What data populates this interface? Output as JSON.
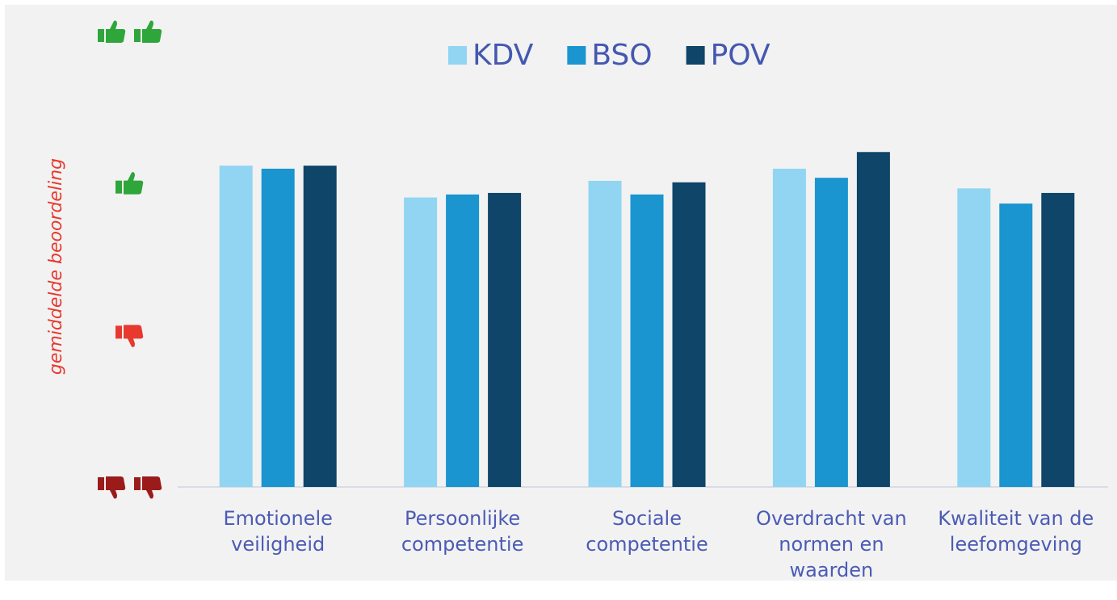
{
  "chart_data": {
    "type": "bar",
    "y_label": "gemiddelde beoordeling",
    "categories": [
      "Emotionele veiligheid",
      "Persoonlijke competentie",
      "Sociale competentie",
      "Overdracht van normen en waarden",
      "Kwaliteit van de leefomgeving"
    ],
    "series": [
      {
        "name": "KDV",
        "color": "#91d5f3",
        "values": [
          3.12,
          2.91,
          3.02,
          3.1,
          2.97
        ]
      },
      {
        "name": "BSO",
        "color": "#1a95d0",
        "values": [
          3.1,
          2.93,
          2.93,
          3.04,
          2.87
        ]
      },
      {
        "name": "POV",
        "color": "#0e4569",
        "values": [
          3.12,
          2.94,
          3.01,
          3.21,
          2.94
        ]
      }
    ],
    "ylim": [
      1,
      4
    ],
    "yticks": [
      1,
      2,
      3,
      4
    ],
    "ytick_colors": [
      "#9b1b1b",
      "#e8392f",
      "#2ea63a",
      "#2ea63a"
    ],
    "legend": "top",
    "grid": false
  }
}
